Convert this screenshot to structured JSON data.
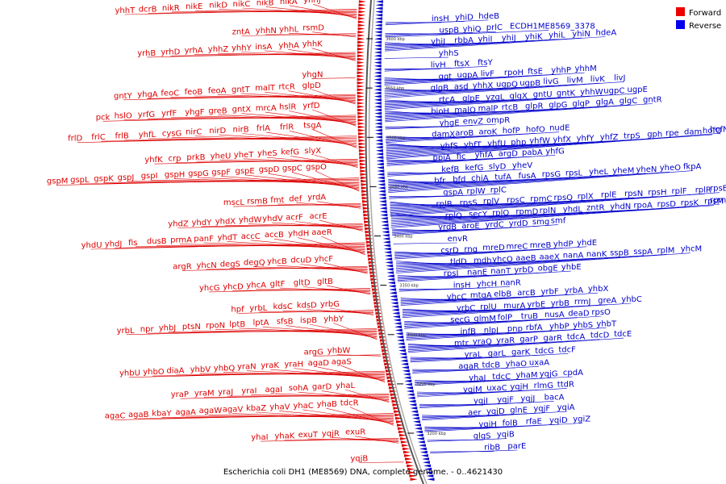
{
  "caption": "Escherichia coli DH1 (ME8569) DNA, complete genome. - 0..4621430",
  "legend": [
    {
      "label": "Forward",
      "color": "#ee0000"
    },
    {
      "label": "Reverse",
      "color": "#0000ee"
    }
  ],
  "colors": {
    "forward": "#dd0000",
    "reverse": "#0000cc",
    "backbone": "#555555"
  },
  "ticks": [
    "3600 kbp",
    "3550 kbp",
    "3500 kbp",
    "3450 kbp",
    "3400 kbp",
    "3350 kbp",
    "3300 kbp",
    "3250 kbp",
    "3200 kbp"
  ],
  "forward_rows": [
    [
      "yhhT",
      "dcrB",
      "nikR",
      "nikE",
      "nikD",
      "nikC",
      "nikB",
      "nikA",
      "yhhJ"
    ],
    [
      "zntA",
      "yhhN",
      "yhhL",
      "rsmD"
    ],
    [
      "yrhB",
      "yrhD",
      "yrhA",
      "yhhZ",
      "yhhY",
      "insA",
      "yhhA",
      "yhhK"
    ],
    [
      "yhgN"
    ],
    [
      "gntY",
      "yhgA",
      "feoC",
      "feoB",
      "feoA",
      "gntT",
      "malT",
      "rtcR",
      "glpD"
    ],
    [
      "pck",
      "hslO",
      "yrfG",
      "yrfF",
      "yhgF",
      "greB",
      "gntX",
      "mrcA",
      "hslR",
      "yrfD"
    ],
    [
      "frlD",
      "frlC",
      "frlB",
      "yhfL",
      "cysG",
      "nirC",
      "nirD",
      "nirB",
      "frlA",
      "frlR",
      "tsgA"
    ],
    [
      "yhfK",
      "crp",
      "prkB",
      "yheU",
      "yheT",
      "yheS",
      "kefG",
      "slyX"
    ],
    [
      "gspM",
      "gspL",
      "gspK",
      "gspJ",
      "gspI",
      "gspH",
      "gspG",
      "gspF",
      "gspE",
      "gspD",
      "gspC",
      "gspO"
    ],
    [
      "mscL",
      "rsmB",
      "fmt",
      "def",
      "yrdA"
    ],
    [
      "yhdZ",
      "yhdY",
      "yhdX",
      "yhdW",
      "yhdV",
      "acrF",
      "acrE"
    ],
    [
      "yhdU",
      "yhdJ",
      "fis",
      "dusB",
      "prmA",
      "panF",
      "yhdT",
      "accC",
      "accB",
      "yhdH",
      "aaeR"
    ],
    [
      "argR",
      "yhcN",
      "degS",
      "degQ",
      "yhcB",
      "dcuD",
      "yhcF"
    ],
    [
      "yhcG",
      "yhcD",
      "yhcA",
      "gltF",
      "gltD",
      "gltB"
    ],
    [
      "hpf",
      "yrbL",
      "kdsC",
      "kdsD",
      "yrbG"
    ],
    [
      "yrbL",
      "npr",
      "yhbJ",
      "ptsN",
      "rpoN",
      "lptB",
      "lptA",
      "sfsB",
      "ispB",
      "yhbY"
    ],
    [
      "argG",
      "yhbW"
    ],
    [
      "yhbU",
      "yhbO",
      "diaA",
      "yhbV",
      "yhbQ",
      "yraN",
      "yraK",
      "yraH",
      "agaD",
      "agaS"
    ],
    [
      "yraP",
      "yraM",
      "yraJ",
      "yraI",
      "agaI",
      "sohA",
      "garD",
      "yhaL"
    ],
    [
      "agaC",
      "agaB",
      "kbaY",
      "agaA",
      "agaW",
      "agaV",
      "kbaZ",
      "yhaV",
      "yhaC",
      "yhaB",
      "tdcR"
    ],
    [
      "yhaI",
      "yhaK",
      "exuT",
      "yqjR",
      "exuR"
    ],
    [
      "yqjB"
    ]
  ],
  "reverse_rows": [
    [
      "insH",
      "yhiD",
      "hdeB"
    ],
    [
      "uspB",
      "yhiQ",
      "prlC",
      "ECDH1ME8569_3378"
    ],
    [
      "yhiJ",
      "rbbA",
      "yhiI",
      "yhiJ",
      "yhiK",
      "yhiL",
      "yhiN",
      "hdeA"
    ],
    [
      "yhhS"
    ],
    [
      "livH",
      "ftsX",
      "ftsY"
    ],
    [
      "ggt",
      "ugpA",
      "livF",
      "rpoH",
      "ftsE",
      "yhhP",
      "yhhM"
    ],
    [
      "glgB",
      "asd",
      "yhhX",
      "ugpQ",
      "ugpB",
      "livG",
      "livM",
      "livK",
      "livJ"
    ],
    [
      "rtcA",
      "glpE",
      "yzgL",
      "glgX",
      "gntU",
      "gntK",
      "yhhW",
      "ugpC",
      "ugpE"
    ],
    [
      "bioH",
      "malQ",
      "malP",
      "rtcB",
      "glpR",
      "glpG",
      "glgP",
      "glgA",
      "glgC",
      "gntR"
    ],
    [
      "yhgE",
      "envZ",
      "ompR"
    ],
    [
      "damX",
      "aroB",
      "aroK",
      "hofP",
      "hofO",
      "nudE"
    ],
    [
      "yhfS",
      "yhfT",
      "yhfU",
      "php",
      "yhfW",
      "yhfX",
      "yhfY",
      "yhfZ",
      "trpS",
      "gph",
      "rpe",
      "dam",
      "hofQ",
      "hofN"
    ],
    [
      "ppiA",
      "fic",
      "yhfA",
      "argD",
      "pabA",
      "yhfG"
    ],
    [
      "kefB",
      "kefG",
      "slyD",
      "yheV"
    ],
    [
      "bfr",
      "bfd",
      "chiA",
      "tufA",
      "fusA",
      "rpsG",
      "rpsL",
      "yheL",
      "yheM",
      "yheN",
      "yheO",
      "fkpA"
    ],
    [
      "gspA",
      "rplW",
      "rplC"
    ],
    [
      "rplB",
      "rpsS",
      "rplV",
      "rpsC",
      "rpmC",
      "rpsQ",
      "rplX",
      "rplE",
      "rpsN",
      "rpsH",
      "rplF",
      "rplR",
      "rpsE"
    ],
    [
      "rplQ",
      "secY",
      "rplO",
      "rpmD",
      "rplN",
      "yhdL",
      "zntR",
      "yhdN",
      "rpoA",
      "rpsD",
      "rpsK",
      "rpsM",
      "rpmJ"
    ],
    [
      "yrdB",
      "aroE",
      "yrdC",
      "yrdD",
      "smg",
      "smf"
    ],
    [
      "envR"
    ],
    [
      "csrD",
      "rng",
      "mreD",
      "mreC",
      "mreB",
      "yhdP",
      "yhdE"
    ],
    [
      "tldD",
      "mdh",
      "yhcO",
      "aaeB",
      "aaeX",
      "nanA",
      "nanK",
      "sspB",
      "sspA",
      "rplM",
      "yhcM"
    ],
    [
      "rpsI",
      "nanE",
      "nanT",
      "yrbD",
      "obgE",
      "yhbE"
    ],
    [
      "insH",
      "yhcH",
      "nanR"
    ],
    [
      "yhcC",
      "mtgA",
      "elbB",
      "arcB",
      "yrbF",
      "yrbA",
      "yhbX"
    ],
    [
      "yrbC",
      "rplU",
      "murA",
      "yrbE",
      "yrbB",
      "rrmJ",
      "greA",
      "yhbC"
    ],
    [
      "secG",
      "glmM",
      "folP",
      "truB",
      "nusA",
      "deaD",
      "rpsO"
    ],
    [
      "infB",
      "nlpI",
      "pnp",
      "rbfA",
      "yhbP",
      "yhbS",
      "yhbT"
    ],
    [
      "mtr",
      "yraQ",
      "yraR",
      "garP",
      "garR",
      "tdcA",
      "tdcD",
      "tdcE"
    ],
    [
      "yraL",
      "garL",
      "garK",
      "tdcG",
      "tdcF"
    ],
    [
      "agaR",
      "tdcB",
      "yhaO",
      "uxaA"
    ],
    [
      "yhaJ",
      "tdcC",
      "yhaM",
      "yqjG",
      "cpdA"
    ],
    [
      "yqjM",
      "uxaC",
      "yqjH",
      "rlmG",
      "ttdR"
    ],
    [
      "yqjI",
      "yqjF",
      "yqjJ",
      "bacA"
    ],
    [
      "aer",
      "yqjD",
      "glnE",
      "yqjF",
      "yqiA"
    ],
    [
      "yqjH",
      "folB",
      "rfaE",
      "yqiD",
      "ygiZ"
    ],
    [
      "glgS",
      "yqiB"
    ],
    [
      "ribB",
      "parE"
    ]
  ]
}
